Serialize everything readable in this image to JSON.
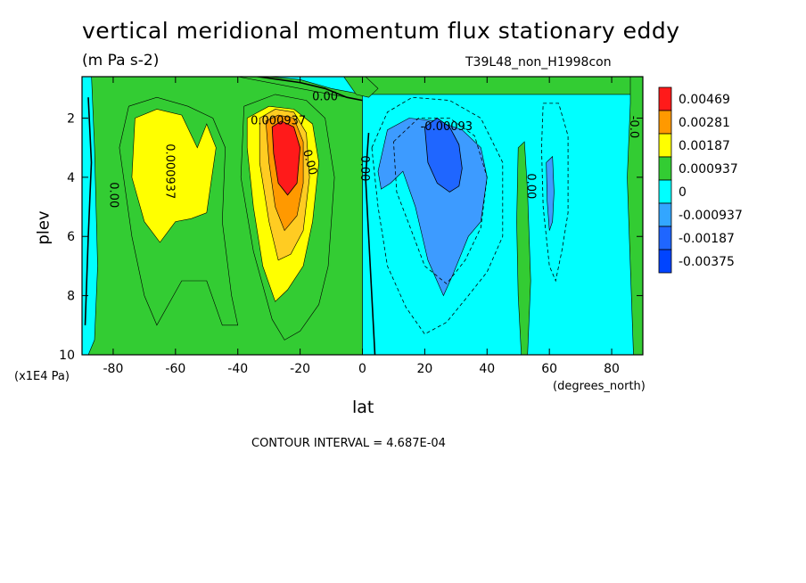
{
  "chart_data": {
    "type": "heatmap",
    "title": "vertical meridional momentum flux stationary eddy",
    "units": "(m Pa s-2)",
    "run_label": "T39L48_non_H1998con",
    "xlabel": "lat",
    "x_units": "(degrees_north)",
    "ylabel": "plev",
    "y_units": "(x1E4 Pa)",
    "contour_interval_text": "CONTOUR INTERVAL = 4.687E-04",
    "xlim": [
      -90,
      90
    ],
    "ylim": [
      10,
      0
    ],
    "x_ticks": [
      "-80",
      "-60",
      "-40",
      "-20",
      "0",
      "20",
      "40",
      "60",
      "80"
    ],
    "x_tick_values": [
      -80,
      -60,
      -40,
      -20,
      0,
      20,
      40,
      60,
      80
    ],
    "y_ticks": [
      "2",
      "4",
      "6",
      "8",
      "10"
    ],
    "y_tick_values": [
      2,
      4,
      6,
      8,
      10
    ],
    "legend": {
      "placement": "right",
      "labels": [
        "0.00469",
        "0.00281",
        "0.00187",
        "0.000937",
        "0",
        "-0.000937",
        "-0.00187",
        "-0.00375"
      ],
      "colors": [
        "#ff1a1a",
        "#ff9900",
        "#ffff00",
        "#33cc33",
        "#00ffff",
        "#33a6ff",
        "#1f66ff",
        "#0044ff"
      ]
    },
    "level_colors": {
      "neg3": "#1f66ff",
      "neg2": "#3d9bff",
      "neg1": "#00ffff",
      "zero": "#33cc33",
      "pos1": "#ffff00",
      "pos2": "#ffcc22",
      "pos3": "#ff9900",
      "pos4": "#ff1a1a"
    },
    "regions": [
      {
        "id": "sh-green-field",
        "level": "zero",
        "outline": [
          [
            -90,
            0.3
          ],
          [
            -60,
            0.3
          ],
          [
            -40,
            0.6
          ],
          [
            -20,
            1.0
          ],
          [
            0,
            1.4
          ],
          [
            0,
            10
          ],
          [
            -90,
            10
          ]
        ]
      },
      {
        "id": "sh-pole-cyan",
        "level": "neg1",
        "outline": [
          [
            -90,
            0.5
          ],
          [
            -87,
            0.5
          ],
          [
            -86,
            3
          ],
          [
            -85,
            7
          ],
          [
            -86,
            9.5
          ],
          [
            -88,
            10
          ],
          [
            -90,
            10
          ]
        ]
      },
      {
        "id": "sh-top-cyan",
        "level": "neg1",
        "outline": [
          [
            -90,
            0
          ],
          [
            0,
            0
          ],
          [
            0,
            1.2
          ],
          [
            -10,
            1.0
          ],
          [
            -20,
            0.7
          ],
          [
            -40,
            0.5
          ],
          [
            -60,
            0.3
          ],
          [
            -90,
            0.3
          ]
        ]
      },
      {
        "id": "sh-mid-yellow",
        "level": "pos1",
        "outline": [
          [
            -73,
            2.0
          ],
          [
            -66,
            1.7
          ],
          [
            -58,
            1.9
          ],
          [
            -53,
            3.0
          ],
          [
            -50,
            2.2
          ],
          [
            -47,
            3.0
          ],
          [
            -50,
            5.2
          ],
          [
            -55,
            5.4
          ],
          [
            -60,
            5.5
          ],
          [
            -65,
            6.2
          ],
          [
            -70,
            5.5
          ],
          [
            -74,
            4.0
          ]
        ]
      },
      {
        "id": "sh-jet-yellow",
        "level": "pos1",
        "outline": [
          [
            -37,
            2.0
          ],
          [
            -30,
            1.6
          ],
          [
            -22,
            1.7
          ],
          [
            -16,
            2.2
          ],
          [
            -14,
            3.5
          ],
          [
            -16,
            5.5
          ],
          [
            -19,
            7.0
          ],
          [
            -24,
            7.8
          ],
          [
            -28,
            8.2
          ],
          [
            -32,
            7.0
          ],
          [
            -35,
            5.0
          ],
          [
            -37,
            3.0
          ]
        ]
      },
      {
        "id": "sh-jet-gold",
        "level": "pos2",
        "outline": [
          [
            -33,
            2.0
          ],
          [
            -28,
            1.7
          ],
          [
            -22,
            1.8
          ],
          [
            -18,
            2.5
          ],
          [
            -17,
            4.0
          ],
          [
            -19,
            5.8
          ],
          [
            -23,
            6.6
          ],
          [
            -27,
            6.8
          ],
          [
            -30,
            5.5
          ],
          [
            -33,
            3.5
          ]
        ]
      },
      {
        "id": "sh-jet-orange",
        "level": "pos3",
        "outline": [
          [
            -31,
            2.1
          ],
          [
            -27,
            1.9
          ],
          [
            -22,
            2.0
          ],
          [
            -19,
            2.8
          ],
          [
            -19,
            4.2
          ],
          [
            -21,
            5.3
          ],
          [
            -25,
            5.8
          ],
          [
            -28,
            5.0
          ],
          [
            -30,
            3.5
          ]
        ]
      },
      {
        "id": "sh-jet-red",
        "level": "pos4",
        "outline": [
          [
            -29,
            2.3
          ],
          [
            -26,
            2.1
          ],
          [
            -22,
            2.3
          ],
          [
            -20,
            3.0
          ],
          [
            -21,
            4.2
          ],
          [
            -24,
            4.6
          ],
          [
            -27,
            4.2
          ],
          [
            -28.5,
            3.2
          ]
        ]
      },
      {
        "id": "nh-cyan-field",
        "level": "neg1",
        "outline": [
          [
            0,
            1.2
          ],
          [
            90,
            1.2
          ],
          [
            90,
            10
          ],
          [
            0,
            10
          ]
        ]
      },
      {
        "id": "nh-top-green",
        "level": "zero",
        "outline": [
          [
            -10,
            0
          ],
          [
            2,
            0
          ],
          [
            0,
            0.5
          ],
          [
            5,
            1.0
          ],
          [
            2,
            1.3
          ],
          [
            -2,
            1.2
          ]
        ]
      },
      {
        "id": "nh-polar-green",
        "level": "zero",
        "outline": [
          [
            86,
            0
          ],
          [
            90,
            0
          ],
          [
            90,
            10
          ],
          [
            87,
            10
          ],
          [
            85,
            4.0
          ],
          [
            86,
            1.5
          ]
        ]
      },
      {
        "id": "nh-mid-green",
        "level": "zero",
        "outline": [
          [
            50,
            3.0
          ],
          [
            52,
            2.8
          ],
          [
            53,
            4.5
          ],
          [
            54,
            7.5
          ],
          [
            53,
            10
          ],
          [
            51,
            10
          ],
          [
            50,
            8.0
          ],
          [
            49.5,
            5.5
          ]
        ]
      },
      {
        "id": "nh-blue-outer",
        "level": "neg2",
        "outline": [
          [
            5,
            3.8
          ],
          [
            8,
            2.4
          ],
          [
            15,
            2.0
          ],
          [
            24,
            2.1
          ],
          [
            32,
            2.4
          ],
          [
            38,
            3.0
          ],
          [
            40,
            4.0
          ],
          [
            38,
            5.5
          ],
          [
            34,
            6.0
          ],
          [
            29,
            7.3
          ],
          [
            26,
            8.0
          ],
          [
            21,
            6.8
          ],
          [
            17,
            5.0
          ],
          [
            13,
            3.8
          ],
          [
            9,
            4.2
          ],
          [
            6,
            4.4
          ]
        ]
      },
      {
        "id": "nh-blue-core",
        "level": "neg3",
        "outline": [
          [
            20,
            2.3
          ],
          [
            24,
            2.0
          ],
          [
            28,
            2.3
          ],
          [
            31,
            2.9
          ],
          [
            32,
            3.7
          ],
          [
            31,
            4.3
          ],
          [
            28,
            4.5
          ],
          [
            24,
            4.2
          ],
          [
            21,
            3.5
          ]
        ]
      },
      {
        "id": "nh-blue-strip",
        "level": "neg2",
        "outline": [
          [
            59,
            3.5
          ],
          [
            61,
            3.3
          ],
          [
            61.5,
            4.5
          ],
          [
            61,
            5.5
          ],
          [
            60,
            5.8
          ],
          [
            59.3,
            4.8
          ]
        ]
      }
    ],
    "zero_lines": [
      [
        [
          -90,
          0.3
        ],
        [
          -60,
          0.3
        ],
        [
          -40,
          0.5
        ],
        [
          -20,
          0.8
        ],
        [
          -12,
          1.0
        ],
        [
          -5,
          1.3
        ],
        [
          0,
          1.4
        ]
      ],
      [
        [
          2,
          2.5
        ],
        [
          1,
          4.0
        ],
        [
          2,
          6.0
        ],
        [
          3,
          8.0
        ],
        [
          4,
          10
        ]
      ],
      [
        [
          -88,
          1.3
        ],
        [
          -87,
          3.5
        ],
        [
          -88,
          6.0
        ],
        [
          -89,
          9.0
        ]
      ]
    ],
    "contour_labels": [
      {
        "text": "0.00",
        "x": -12,
        "y": 1.3
      },
      {
        "text": "0.000937",
        "x": -27,
        "y": 2.1
      },
      {
        "text": "-0.00093",
        "x": 27,
        "y": 2.3
      },
      {
        "text": "0.000937",
        "x": -62,
        "y": 3.8,
        "rotate": 90
      },
      {
        "text": "0.00",
        "x": -80,
        "y": 4.6,
        "rotate": 90
      },
      {
        "text": "0.00",
        "x": -17,
        "y": 3.5,
        "rotate": 75
      },
      {
        "text": "0.00",
        "x": 0.5,
        "y": 3.7,
        "rotate": 90
      },
      {
        "text": "0.00",
        "x": 54,
        "y": 4.3,
        "rotate": 90
      },
      {
        "text": "-0.0",
        "x": 87,
        "y": 2.3,
        "rotate": 90
      }
    ],
    "thin_contours": [
      [
        [
          -75,
          1.6
        ],
        [
          -66,
          1.3
        ],
        [
          -56,
          1.6
        ],
        [
          -48,
          2.0
        ],
        [
          -44,
          3.0
        ],
        [
          -45,
          5.5
        ],
        [
          -42,
          8.0
        ],
        [
          -40,
          9.0
        ],
        [
          -45,
          9.0
        ],
        [
          -50,
          7.5
        ],
        [
          -58,
          7.5
        ],
        [
          -66,
          9.0
        ],
        [
          -70,
          8.0
        ],
        [
          -74,
          6.0
        ],
        [
          -78,
          3.0
        ],
        [
          -75,
          1.6
        ]
      ],
      [
        [
          -38,
          1.6
        ],
        [
          -28,
          1.2
        ],
        [
          -18,
          1.4
        ],
        [
          -12,
          2.0
        ],
        [
          -9,
          4.0
        ],
        [
          -11,
          7.0
        ],
        [
          -14,
          8.3
        ],
        [
          -20,
          9.2
        ],
        [
          -25,
          9.5
        ],
        [
          -29,
          8.8
        ],
        [
          -35,
          6.5
        ],
        [
          -39,
          4.0
        ],
        [
          -38,
          1.6
        ]
      ]
    ],
    "dashed_contours": [
      [
        [
          3,
          3.0
        ],
        [
          8,
          1.8
        ],
        [
          16,
          1.3
        ],
        [
          28,
          1.4
        ],
        [
          38,
          2.0
        ],
        [
          45,
          3.5
        ],
        [
          45,
          6.0
        ],
        [
          40,
          7.2
        ],
        [
          34,
          8.0
        ],
        [
          27,
          8.9
        ],
        [
          20,
          9.3
        ],
        [
          14,
          8.4
        ],
        [
          8,
          7.0
        ],
        [
          5,
          5.0
        ],
        [
          3,
          3.0
        ]
      ],
      [
        [
          10,
          2.8
        ],
        [
          18,
          2.0
        ],
        [
          28,
          2.0
        ],
        [
          36,
          2.6
        ],
        [
          40,
          4.0
        ],
        [
          38,
          5.7
        ],
        [
          33,
          6.8
        ],
        [
          27,
          7.6
        ],
        [
          20,
          7.0
        ],
        [
          15,
          5.6
        ],
        [
          11,
          4.5
        ],
        [
          10,
          2.8
        ]
      ],
      [
        [
          58,
          1.5
        ],
        [
          63,
          1.5
        ],
        [
          66,
          2.6
        ],
        [
          66,
          5.2
        ],
        [
          64,
          6.5
        ],
        [
          62,
          7.5
        ],
        [
          60,
          7.0
        ],
        [
          58,
          5.0
        ],
        [
          57.5,
          3.0
        ],
        [
          58,
          1.5
        ]
      ]
    ]
  }
}
